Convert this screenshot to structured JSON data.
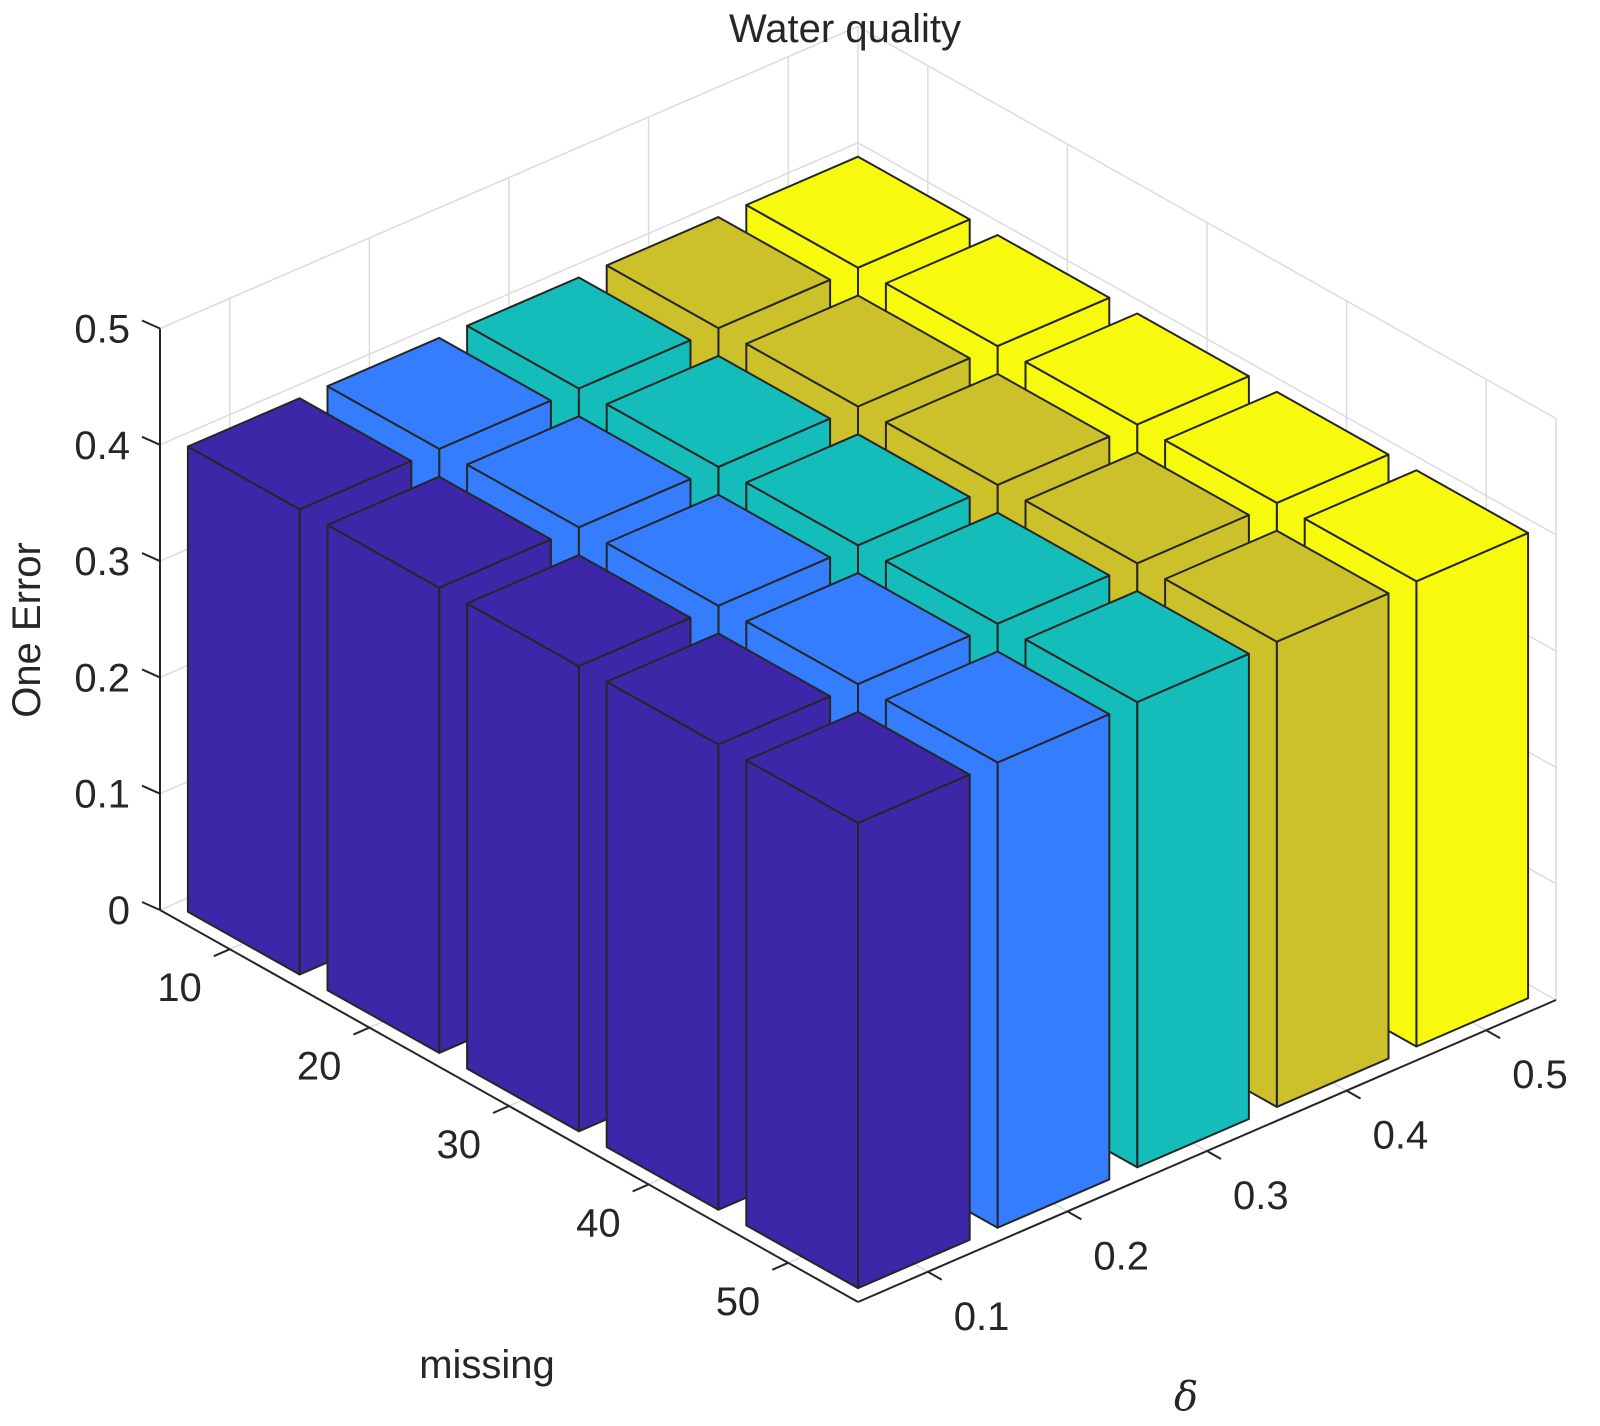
{
  "chart_data": {
    "type": "bar3d",
    "title": "Water quality",
    "xlabel": "missing",
    "ylabel": "δ",
    "zlabel": "One Error",
    "x_ticks": [
      "10",
      "20",
      "30",
      "40",
      "50"
    ],
    "y_ticks": [
      "0.1",
      "0.2",
      "0.3",
      "0.4",
      "0.5"
    ],
    "z_ticks": [
      "0",
      "0.1",
      "0.2",
      "0.3",
      "0.4",
      "0.5"
    ],
    "zlim": [
      0,
      0.5
    ],
    "grid": true,
    "colors": {
      "0.1": "#3E26A8",
      "0.2": "#347DFF",
      "0.3": "#14BDB9",
      "0.4": "#CCC12A",
      "0.5": "#F8FA0D"
    },
    "series": [
      {
        "delta": "0.1",
        "values": [
          0.4,
          0.4,
          0.4,
          0.4,
          0.4
        ]
      },
      {
        "delta": "0.2",
        "values": [
          0.4,
          0.4,
          0.4,
          0.4,
          0.4
        ]
      },
      {
        "delta": "0.3",
        "values": [
          0.4,
          0.4,
          0.4,
          0.4,
          0.4
        ]
      },
      {
        "delta": "0.4",
        "values": [
          0.4,
          0.4,
          0.4,
          0.4,
          0.4
        ]
      },
      {
        "delta": "0.5",
        "values": [
          0.4,
          0.4,
          0.4,
          0.4,
          0.4
        ]
      }
    ]
  }
}
